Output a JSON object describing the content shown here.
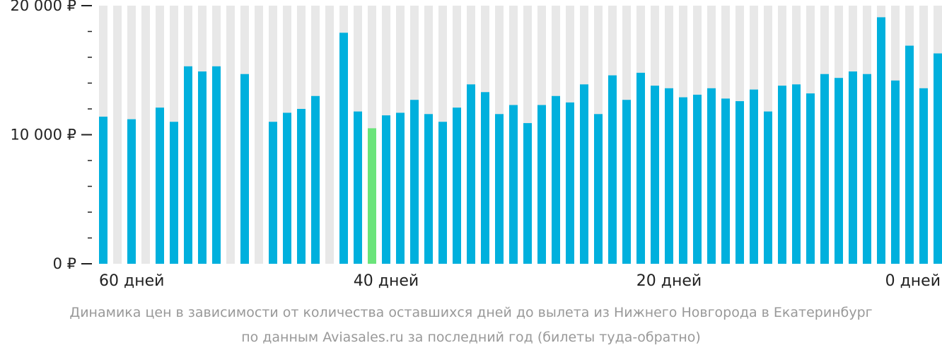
{
  "chart_data": {
    "type": "bar",
    "ylim": [
      0,
      20000
    ],
    "y_ticks": [
      {
        "value": 20000,
        "label": "20 000 ₽"
      },
      {
        "value": 10000,
        "label": "10 000 ₽"
      },
      {
        "value": 0,
        "label": "0 ₽"
      }
    ],
    "minor_tick_step": 2000,
    "x_labels": [
      {
        "index": 0,
        "label": "60 дней"
      },
      {
        "index": 20,
        "label": "40 дней"
      },
      {
        "index": 40,
        "label": "20 дней"
      },
      {
        "index": 59,
        "label": "0 дней"
      }
    ],
    "values": [
      11400,
      null,
      11200,
      null,
      12100,
      11000,
      15300,
      14900,
      15300,
      null,
      14700,
      null,
      11000,
      11700,
      12000,
      13000,
      null,
      17900,
      11800,
      10500,
      11500,
      11700,
      12700,
      11600,
      11000,
      12100,
      13900,
      13300,
      11600,
      12300,
      10900,
      12300,
      13000,
      12500,
      13900,
      11600,
      14600,
      12700,
      14800,
      13800,
      13600,
      12900,
      13100,
      13600,
      12800,
      12600,
      13500,
      11800,
      13800,
      13900,
      13200,
      14700,
      14400,
      14900,
      14700,
      19100,
      14200,
      16900,
      13600,
      16300
    ],
    "highlight_index": 19,
    "colors": {
      "bar": "#00b0dd",
      "highlight": "#6be47a",
      "background_bar": "#e8e8e8",
      "axis": "#222222"
    }
  },
  "caption": {
    "line1": "Динамика цен в зависимости от количества оставшихся дней до вылета из Нижнего Новгорода в Екатеринбург",
    "line2": "по данным Aviasales.ru за последний год (билеты туда-обратно)"
  }
}
